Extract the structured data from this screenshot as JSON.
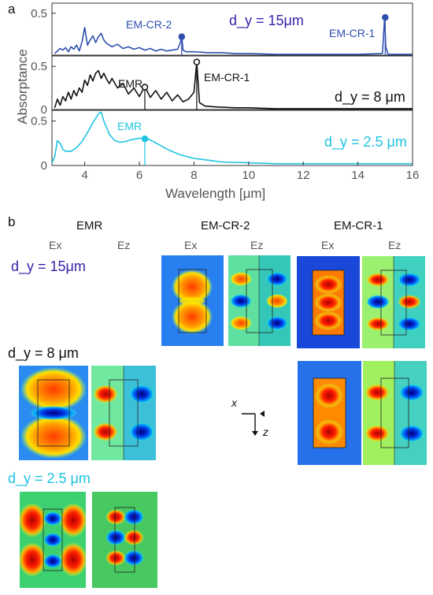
{
  "panel_a_label": "a",
  "panel_b_label": "b",
  "chart_data": {
    "type": "line",
    "xlabel": "Wavelength [μm]",
    "ylabel": "Absorptance",
    "xlim": [
      2.8,
      16
    ],
    "x_ticks": [
      4,
      6,
      8,
      10,
      12,
      14,
      16
    ],
    "grid": false,
    "subplots": [
      {
        "dy_label": "d_y = 15μm",
        "color": "#2f4fae",
        "ylim": [
          0,
          0.62
        ],
        "y_ticks": [
          "0.5"
        ],
        "x": [
          2.9,
          3.0,
          3.1,
          3.2,
          3.3,
          3.4,
          3.5,
          3.6,
          3.7,
          3.8,
          3.9,
          4.0,
          4.1,
          4.2,
          4.3,
          4.4,
          4.5,
          4.6,
          4.7,
          4.8,
          4.9,
          5.0,
          5.2,
          5.4,
          5.6,
          5.8,
          6.0,
          6.2,
          6.4,
          6.6,
          6.8,
          7.0,
          7.2,
          7.4,
          7.5,
          7.55,
          7.6,
          7.7,
          8.0,
          8.5,
          9.0,
          9.5,
          10.0,
          11.0,
          12.0,
          13.0,
          14.0,
          14.9,
          14.98,
          15.02,
          15.1,
          15.5,
          16.0
        ],
        "y": [
          0.02,
          0.05,
          0.08,
          0.06,
          0.09,
          0.04,
          0.1,
          0.07,
          0.12,
          0.05,
          0.16,
          0.33,
          0.12,
          0.18,
          0.23,
          0.15,
          0.22,
          0.26,
          0.18,
          0.14,
          0.12,
          0.1,
          0.13,
          0.08,
          0.1,
          0.07,
          0.09,
          0.06,
          0.08,
          0.05,
          0.07,
          0.05,
          0.06,
          0.07,
          0.15,
          0.22,
          0.06,
          0.04,
          0.04,
          0.03,
          0.03,
          0.02,
          0.02,
          0.01,
          0.01,
          0.01,
          0.01,
          0.02,
          0.45,
          0.1,
          0.01,
          0.01,
          0.01
        ],
        "markers": [
          {
            "x": 7.55,
            "y": 0.22,
            "label": "EM-CR-2"
          },
          {
            "x": 15.0,
            "y": 0.45,
            "label": "EM-CR-1"
          }
        ]
      },
      {
        "dy_label": "d_y = 8 μm",
        "color": "#111111",
        "ylim": [
          0,
          0.62
        ],
        "y_ticks": [
          "0",
          "0.5"
        ],
        "x": [
          2.9,
          3.0,
          3.1,
          3.2,
          3.3,
          3.4,
          3.5,
          3.6,
          3.7,
          3.8,
          3.9,
          4.0,
          4.1,
          4.2,
          4.3,
          4.4,
          4.5,
          4.6,
          4.7,
          4.8,
          4.9,
          5.0,
          5.2,
          5.4,
          5.6,
          5.8,
          6.0,
          6.2,
          6.4,
          6.6,
          6.8,
          7.0,
          7.2,
          7.4,
          7.6,
          7.8,
          8.0,
          8.1,
          8.2,
          8.4,
          8.8,
          9.5,
          10.0,
          11.0,
          12.0,
          13.0,
          14.0,
          15.0,
          16.0
        ],
        "y": [
          0.02,
          0.12,
          0.05,
          0.15,
          0.1,
          0.2,
          0.12,
          0.22,
          0.16,
          0.25,
          0.2,
          0.34,
          0.28,
          0.4,
          0.33,
          0.42,
          0.45,
          0.36,
          0.42,
          0.35,
          0.3,
          0.36,
          0.25,
          0.3,
          0.18,
          0.25,
          0.15,
          0.27,
          0.14,
          0.22,
          0.12,
          0.2,
          0.1,
          0.17,
          0.09,
          0.12,
          0.2,
          0.55,
          0.08,
          0.04,
          0.03,
          0.02,
          0.02,
          0.01,
          0.01,
          0.01,
          0.01,
          0.01,
          0.01
        ],
        "markers": [
          {
            "x": 6.2,
            "y": 0.26,
            "label": "EMR"
          },
          {
            "x": 8.1,
            "y": 0.55,
            "label": "EM-CR-1"
          }
        ]
      },
      {
        "dy_label": "d_y = 2.5 μm",
        "color": "#1ec3e0",
        "ylim": [
          0,
          0.62
        ],
        "y_ticks": [
          "0",
          "0.5"
        ],
        "x": [
          2.8,
          2.9,
          3.0,
          3.1,
          3.2,
          3.3,
          3.5,
          3.7,
          3.9,
          4.1,
          4.3,
          4.5,
          4.6,
          4.7,
          4.9,
          5.1,
          5.3,
          5.5,
          5.7,
          5.9,
          6.1,
          6.3,
          6.5,
          6.8,
          7.1,
          7.5,
          8.0,
          8.5,
          9.0,
          10.0,
          11.0,
          12.0,
          13.0,
          14.0,
          15.0,
          16.0
        ],
        "y": [
          0.03,
          0.1,
          0.28,
          0.25,
          0.18,
          0.16,
          0.16,
          0.2,
          0.27,
          0.37,
          0.48,
          0.58,
          0.6,
          0.5,
          0.35,
          0.28,
          0.26,
          0.27,
          0.29,
          0.3,
          0.31,
          0.3,
          0.27,
          0.22,
          0.17,
          0.12,
          0.08,
          0.06,
          0.04,
          0.03,
          0.02,
          0.02,
          0.02,
          0.02,
          0.02,
          0.02
        ],
        "markers": [
          {
            "x": 6.2,
            "y": 0.3,
            "label": "EMR"
          }
        ]
      }
    ]
  },
  "panel_b": {
    "column_titles": [
      "EMR",
      "EM-CR-2",
      "EM-CR-1"
    ],
    "component_labels": [
      "Ex",
      "Ez"
    ],
    "row_labels": [
      "d_y = 15μm",
      "d_y = 8 μm",
      "d_y = 2.5 μm"
    ],
    "row_label_colors": [
      "#3a1fa8",
      "#111111",
      "#1ec3e0"
    ]
  },
  "axes_legend": {
    "x": "x",
    "z": "z"
  }
}
